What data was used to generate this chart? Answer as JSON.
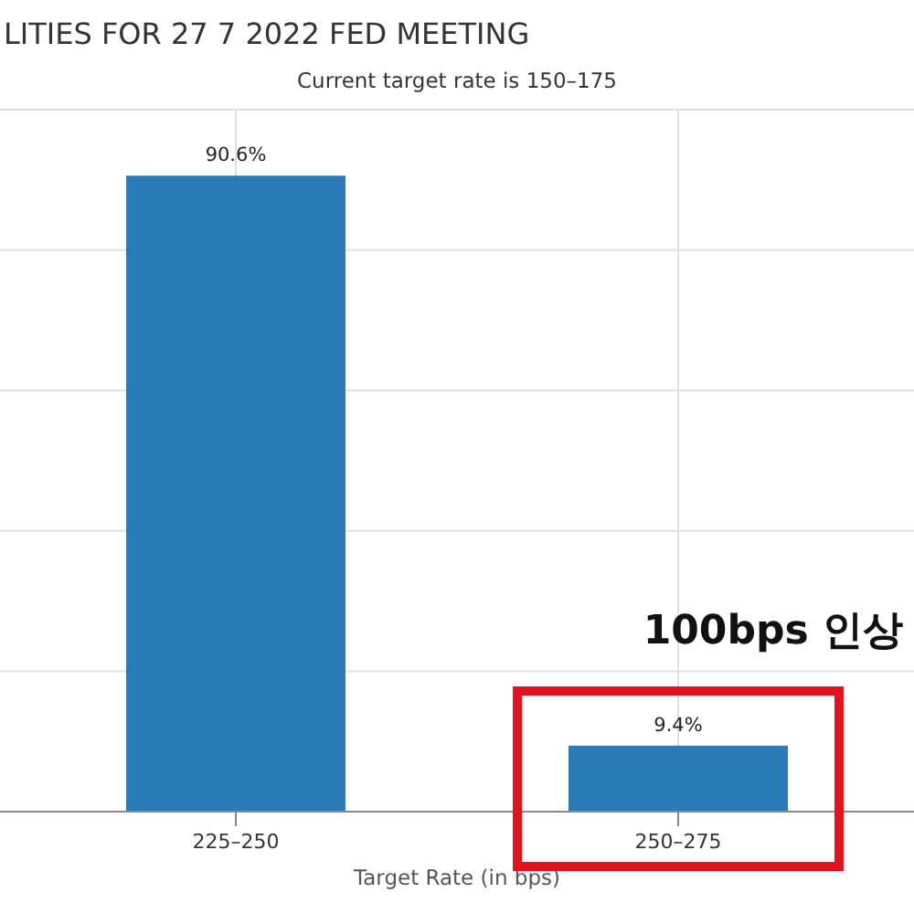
{
  "chart_data": {
    "type": "bar",
    "title": "LITIES FOR 27 7 2022 FED MEETING",
    "subtitle": "Current target rate is 150–175",
    "xlabel": "Target Rate (in bps)",
    "categories": [
      "225–250",
      "250–275"
    ],
    "values": [
      90.6,
      9.4
    ],
    "color": "#2a7ab5",
    "value_labels": [
      "90.6%",
      "9.4%"
    ],
    "ylim": [
      0,
      100
    ],
    "yticks": [
      {
        "value": 0,
        "label": null
      },
      {
        "value": 20,
        "label": null
      },
      {
        "value": 40,
        "label": null
      },
      {
        "value": 60,
        "label": null
      },
      {
        "value": 80,
        "label": null
      },
      {
        "value": 100,
        "label": null
      }
    ],
    "grid": true,
    "annotations": [
      "100bps 인상"
    ]
  }
}
